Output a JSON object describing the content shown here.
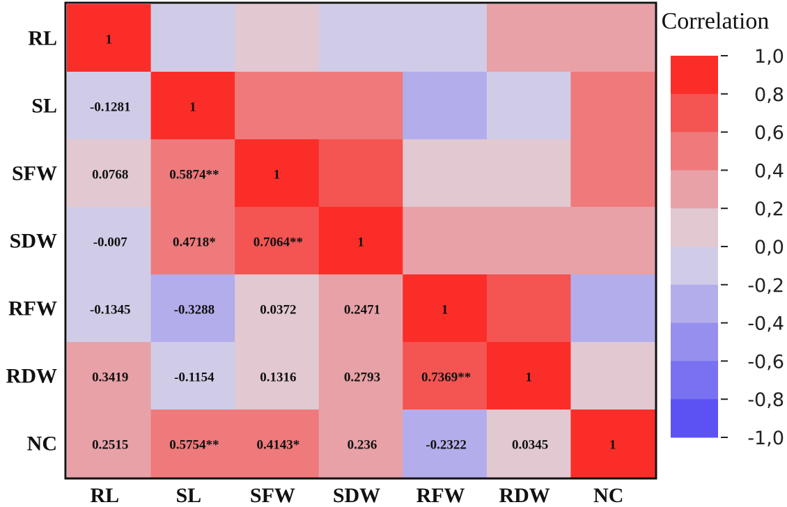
{
  "chart_data": {
    "type": "heatmap",
    "title": "",
    "xlabel": "",
    "ylabel": "",
    "variables": [
      "RL",
      "SL",
      "SFW",
      "SDW",
      "RFW",
      "RDW",
      "NC"
    ],
    "matrix": [
      [
        1.0,
        -0.1281,
        0.0768,
        -0.007,
        -0.1345,
        0.3419,
        0.2515
      ],
      [
        -0.1281,
        1.0,
        0.5874,
        0.4718,
        -0.3288,
        -0.1154,
        0.5754
      ],
      [
        0.0768,
        0.5874,
        1.0,
        0.7064,
        0.0372,
        0.1316,
        0.4143
      ],
      [
        -0.007,
        0.4718,
        0.7064,
        1.0,
        0.2471,
        0.2793,
        0.236
      ],
      [
        -0.1345,
        -0.3288,
        0.0372,
        0.2471,
        1.0,
        0.7369,
        -0.2322
      ],
      [
        0.3419,
        -0.1154,
        0.1316,
        0.2793,
        0.7369,
        1.0,
        0.0345
      ],
      [
        0.2515,
        0.5754,
        0.4143,
        0.236,
        -0.2322,
        0.0345,
        1.0
      ]
    ],
    "cell_labels": [
      [
        "1",
        "",
        "",
        "",
        "",
        "",
        ""
      ],
      [
        "-0.1281",
        "1",
        "",
        "",
        "",
        "",
        ""
      ],
      [
        "0.0768",
        "0.5874**",
        "1",
        "",
        "",
        "",
        ""
      ],
      [
        "-0.007",
        "0.4718*",
        "0.7064**",
        "1",
        "",
        "",
        ""
      ],
      [
        "-0.1345",
        "-0.3288",
        "0.0372",
        "0.2471",
        "1",
        "",
        ""
      ],
      [
        "0.3419",
        "-0.1154",
        "0.1316",
        "0.2793",
        "0.7369**",
        "1",
        ""
      ],
      [
        "0.2515",
        "0.5754**",
        "0.4143*",
        "0.236",
        "-0.2322",
        "0.0345",
        "1"
      ]
    ],
    "legend": {
      "title": "Correlation",
      "min": -1.0,
      "max": 1.0,
      "ticks": [
        "1,0",
        "0,8",
        "0,6",
        "0,4",
        "0,2",
        "0,0",
        "-0,2",
        "-0,4",
        "-0,6",
        "-0,8",
        "-1,0"
      ],
      "position": "right"
    },
    "colors": {
      "negative": "#4e43f5",
      "neutral": "#dedbe6",
      "positive": "#fe1a13",
      "border": "#111111"
    }
  }
}
